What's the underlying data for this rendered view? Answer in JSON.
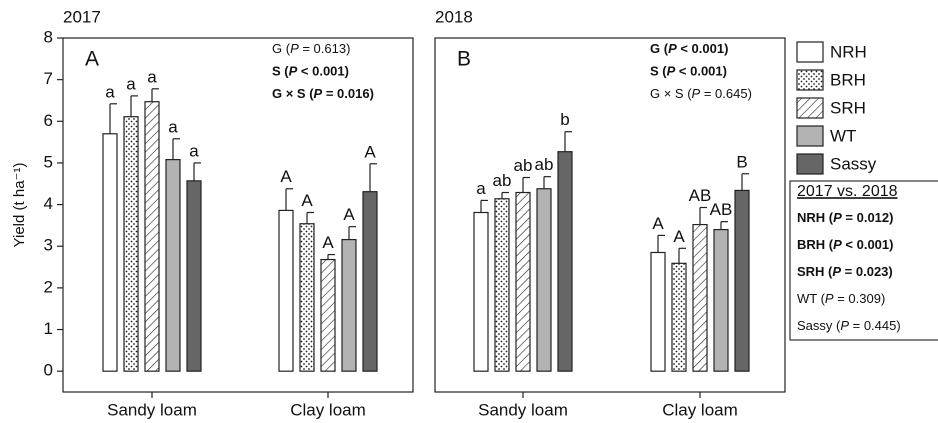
{
  "chart_data": [
    {
      "type": "bar",
      "year": "2017",
      "panel": "A",
      "ylabel": "Yield (t ha⁻¹)",
      "categories": [
        "Sandy loam",
        "Clay loam"
      ],
      "ylim": [
        -0.5,
        8
      ],
      "yticks": [
        0,
        1,
        2,
        3,
        4,
        5,
        6,
        7,
        8
      ],
      "stats": [
        {
          "text": "G (P = 0.613)",
          "bold": false
        },
        {
          "text": "S (P < 0.001)",
          "bold": true
        },
        {
          "text": "G × S (P = 0.016)",
          "bold": true
        }
      ],
      "series": [
        {
          "name": "NRH",
          "color": "#ffffff",
          "pattern": "none",
          "values": [
            5.7,
            3.86
          ],
          "errors": [
            0.72,
            0.52
          ],
          "letters": [
            "a",
            "A"
          ]
        },
        {
          "name": "BRH",
          "color": "#ffffff",
          "pattern": "dots",
          "values": [
            6.11,
            3.54
          ],
          "errors": [
            0.5,
            0.27
          ],
          "letters": [
            "a",
            "A"
          ]
        },
        {
          "name": "SRH",
          "color": "#ffffff",
          "pattern": "hatch",
          "values": [
            6.47,
            2.68
          ],
          "errors": [
            0.31,
            0.12
          ],
          "letters": [
            "a",
            "A"
          ]
        },
        {
          "name": "WT",
          "color": "#b3b3b3",
          "pattern": "none",
          "values": [
            5.08,
            3.16
          ],
          "errors": [
            0.5,
            0.31
          ],
          "letters": [
            "a",
            "A"
          ]
        },
        {
          "name": "Sassy",
          "color": "#666666",
          "pattern": "none",
          "values": [
            4.57,
            4.31
          ],
          "errors": [
            0.43,
            0.67
          ],
          "letters": [
            "a",
            "A"
          ]
        }
      ]
    },
    {
      "type": "bar",
      "year": "2018",
      "panel": "B",
      "categories": [
        "Sandy loam",
        "Clay loam"
      ],
      "ylim": [
        -0.5,
        8
      ],
      "stats": [
        {
          "text": "G (P < 0.001)",
          "bold": true
        },
        {
          "text": "S (P < 0.001)",
          "bold": true
        },
        {
          "text": "G × S (P = 0.645)",
          "bold": false
        }
      ],
      "series": [
        {
          "name": "NRH",
          "color": "#ffffff",
          "pattern": "none",
          "values": [
            3.81,
            2.85
          ],
          "errors": [
            0.29,
            0.41
          ],
          "letters": [
            "a",
            "A"
          ]
        },
        {
          "name": "BRH",
          "color": "#ffffff",
          "pattern": "dots",
          "values": [
            4.14,
            2.59
          ],
          "errors": [
            0.15,
            0.36
          ],
          "letters": [
            "ab",
            "A"
          ]
        },
        {
          "name": "SRH",
          "color": "#ffffff",
          "pattern": "hatch",
          "values": [
            4.29,
            3.52
          ],
          "errors": [
            0.36,
            0.41
          ],
          "letters": [
            "ab",
            "AB"
          ]
        },
        {
          "name": "WT",
          "color": "#b3b3b3",
          "pattern": "none",
          "values": [
            4.38,
            3.4
          ],
          "errors": [
            0.29,
            0.19
          ],
          "letters": [
            "ab",
            "AB"
          ]
        },
        {
          "name": "Sassy",
          "color": "#666666",
          "pattern": "none",
          "values": [
            5.27,
            4.34
          ],
          "errors": [
            0.48,
            0.4
          ],
          "letters": [
            "b",
            "B"
          ]
        }
      ]
    }
  ],
  "comparison": {
    "title": "2017 vs. 2018",
    "rows": [
      {
        "text": "NRH (P = 0.012)",
        "bold": true
      },
      {
        "text": "BRH (P < 0.001)",
        "bold": true
      },
      {
        "text": "SRH (P = 0.023)",
        "bold": true
      },
      {
        "text": "WT (P = 0.309)",
        "bold": false
      },
      {
        "text": "Sassy (P = 0.445)",
        "bold": false
      }
    ]
  }
}
